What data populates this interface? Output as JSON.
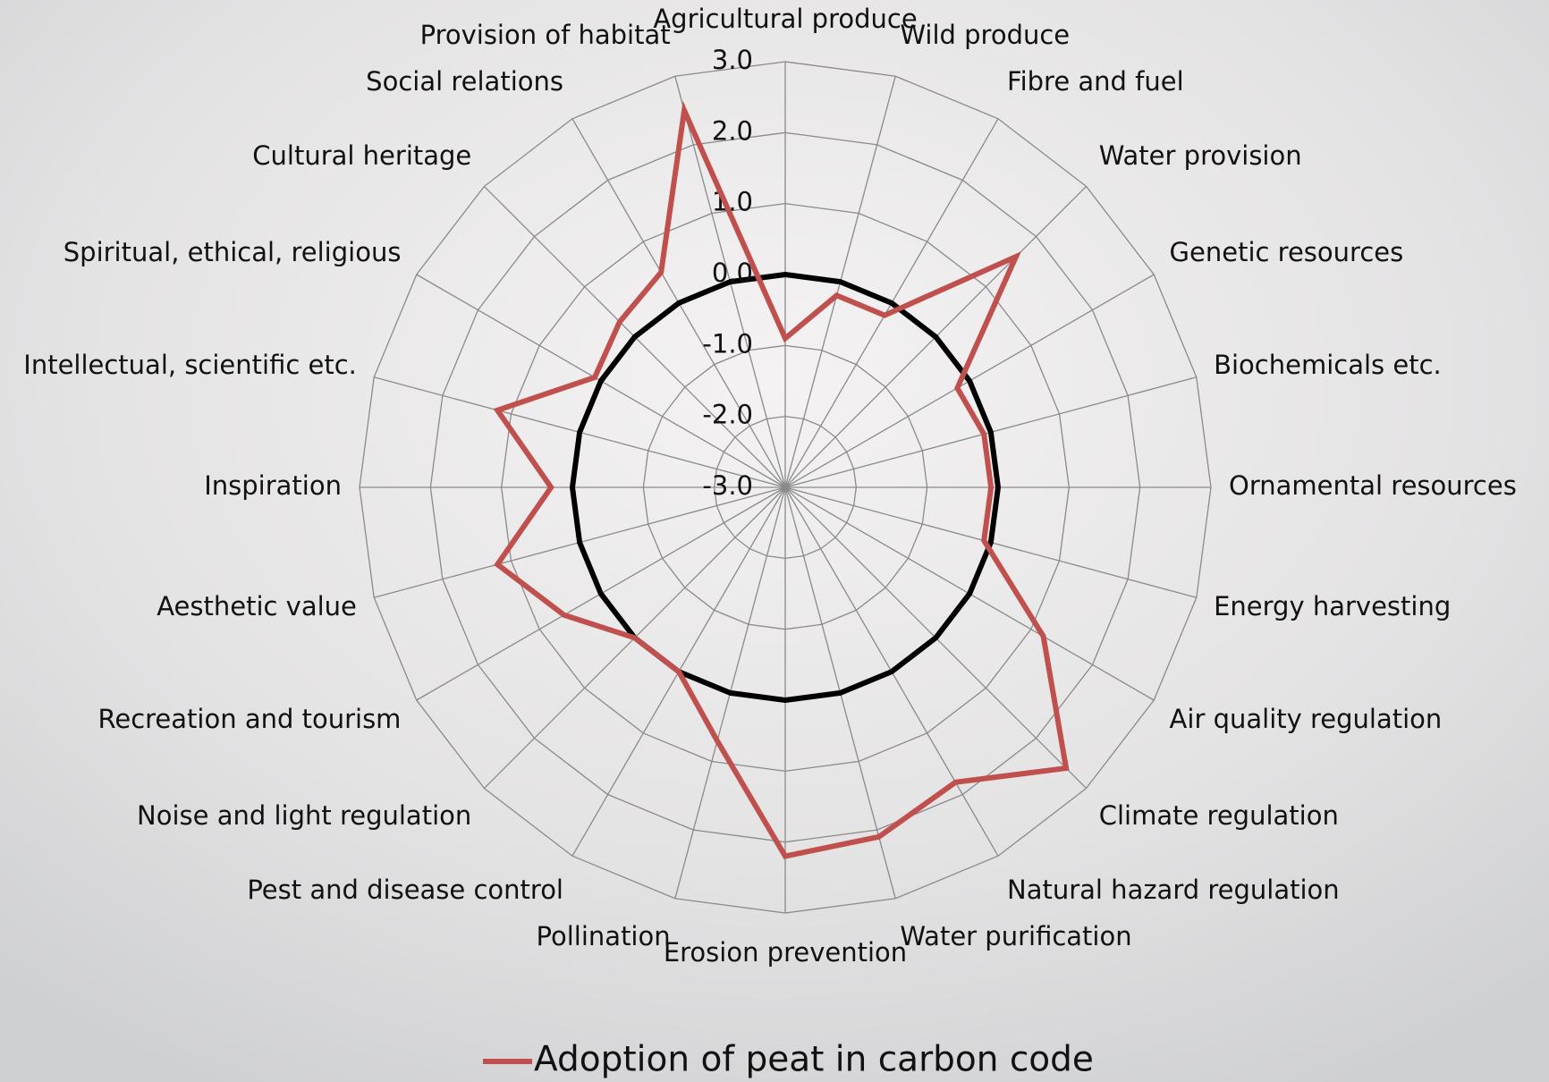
{
  "chart_data": {
    "type": "radar",
    "categories": [
      "Agricultural produce",
      "Wild produce",
      "Fibre and fuel",
      "Water provision",
      "Genetic resources",
      "Biochemicals etc.",
      "Ornamental resources",
      "Energy harvesting",
      "Air quality regulation",
      "Climate regulation",
      "Natural hazard regulation",
      "Water purification",
      "Erosion prevention",
      "Pollination",
      "Pest and disease control",
      "Noise and light regulation",
      "Recreation and tourism",
      "Aesthetic value",
      "Inspiration",
      "Intellectual, scientific etc.",
      "Spiritual, ethical, religious",
      "Cultural heritage",
      "Social relations",
      "Provision of habitat"
    ],
    "series": [
      {
        "name": "Adoption of peat in carbon code",
        "color": "#c0504d",
        "values": [
          -0.9,
          -0.2,
          -0.2,
          1.6,
          -0.2,
          -0.1,
          -0.1,
          -0.1,
          1.2,
          2.6,
          1.8,
          2.1,
          2.2,
          0.7,
          0.0,
          0.0,
          0.6,
          1.2,
          0.3,
          1.2,
          0.1,
          0.3,
          0.5,
          2.5
        ]
      }
    ],
    "ylim": [
      -3,
      3
    ],
    "yticks": [
      {
        "value": -3,
        "label": "-3.0"
      },
      {
        "value": -2,
        "label": "-2.0"
      },
      {
        "value": -1,
        "label": "-1.0"
      },
      {
        "value": 0,
        "label": "0.0"
      },
      {
        "value": 1,
        "label": "1.0"
      },
      {
        "value": 2,
        "label": "2.0"
      },
      {
        "value": 3,
        "label": "3.0"
      }
    ],
    "zero_line": {
      "value": 0,
      "color": "#000000"
    },
    "grid": true,
    "legend": "bottom"
  }
}
